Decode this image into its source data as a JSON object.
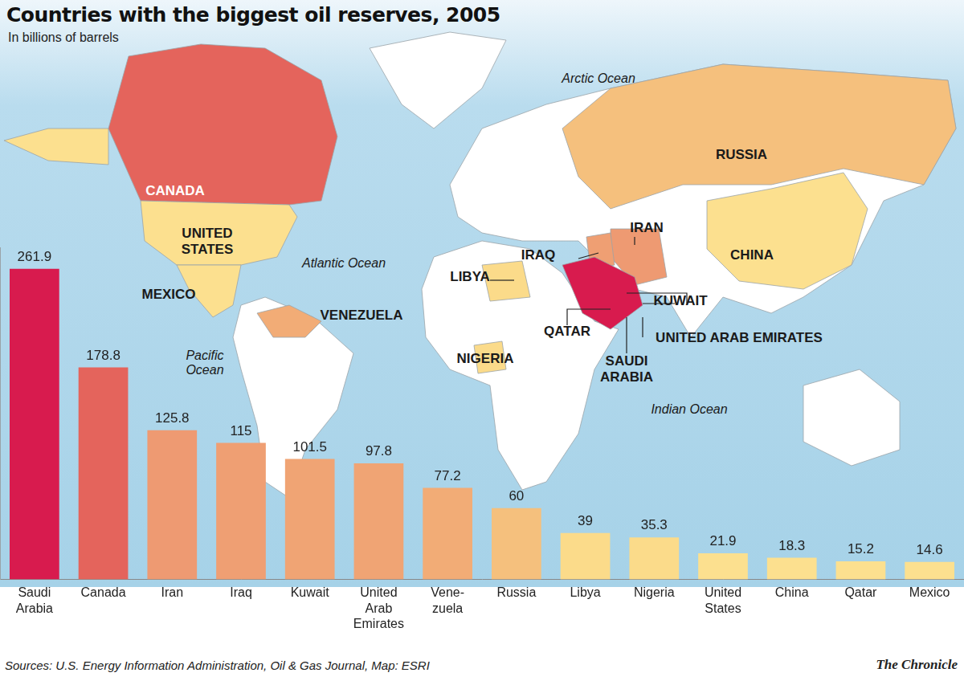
{
  "chart_data": {
    "type": "bar",
    "title": "Countries with the biggest oil reserves, 2005",
    "subtitle": "In billions of barrels",
    "categories": [
      "Saudi\nArabia",
      "Canada",
      "Iran",
      "Iraq",
      "Kuwait",
      "United\nArab\nEmirates",
      "Vene-\nzuela",
      "Russia",
      "Libya",
      "Nigeria",
      "United\nStates",
      "China",
      "Qatar",
      "Mexico"
    ],
    "values": [
      261.9,
      178.8,
      125.8,
      115,
      101.5,
      97.8,
      77.2,
      60,
      39,
      35.3,
      21.9,
      18.3,
      15.2,
      14.6
    ],
    "colors": [
      "#d81b4e",
      "#e4645c",
      "#ee9a72",
      "#ef9f73",
      "#f0a474",
      "#f0a474",
      "#f2ac76",
      "#f5c07d",
      "#fbdb8a",
      "#fbdb8a",
      "#fce08f",
      "#fce08f",
      "#fce08f",
      "#fce08f"
    ],
    "ylim": [
      0,
      280
    ],
    "grid": false,
    "data_labels": true,
    "tick_labels": "x",
    "annotations": [
      {
        "text": "Arctic Ocean"
      },
      {
        "text": "Atlantic Ocean"
      },
      {
        "text": "Pacific\nOcean"
      },
      {
        "text": "Indian Ocean"
      },
      {
        "text": "CANADA"
      },
      {
        "text": "UNITED\nSTATES"
      },
      {
        "text": "MEXICO"
      },
      {
        "text": "VENEZUELA"
      },
      {
        "text": "RUSSIA"
      },
      {
        "text": "IRAN"
      },
      {
        "text": "IRAQ"
      },
      {
        "text": "CHINA"
      },
      {
        "text": "LIBYA"
      },
      {
        "text": "NIGERIA"
      },
      {
        "text": "KUWAIT"
      },
      {
        "text": "QATAR"
      },
      {
        "text": "UNITED ARAB EMIRATES"
      },
      {
        "text": "SAUDI\nARABIA"
      }
    ],
    "source": "Sources: U.S. Energy Information Administration, Oil & Gas Journal, Map: ESRI",
    "credit": "The Chronicle"
  }
}
